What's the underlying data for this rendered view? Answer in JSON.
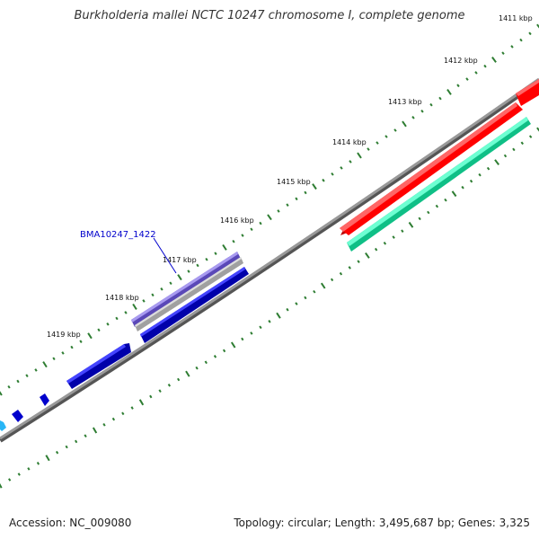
{
  "title": "Burkholderia mallei NCTC 10247 chromosome I, complete genome",
  "footer": {
    "accession": "Accession: NC_009080",
    "summary": "Topology: circular; Length: 3,495,687 bp; Genes: 3,325"
  },
  "tick_labels": [
    "1411 kbp",
    "1412 kbp",
    "1413 kbp",
    "1414 kbp",
    "1415 kbp",
    "1416 kbp",
    "1417 kbp",
    "1418 kbp",
    "1419 kbp"
  ],
  "gene_label": "BMA10247_1422",
  "colors": {
    "backbone": "#808080",
    "tick_marks": "#2e7d32",
    "gene_red": "#ff0000",
    "gene_teal": "#1de9a8",
    "gene_blue": "#0000ee",
    "gene_purple": "#7b68d8",
    "gene_gray": "#b8b8b8",
    "gene_light_blue": "#29b6f6",
    "label_blue": "#0000cc"
  }
}
